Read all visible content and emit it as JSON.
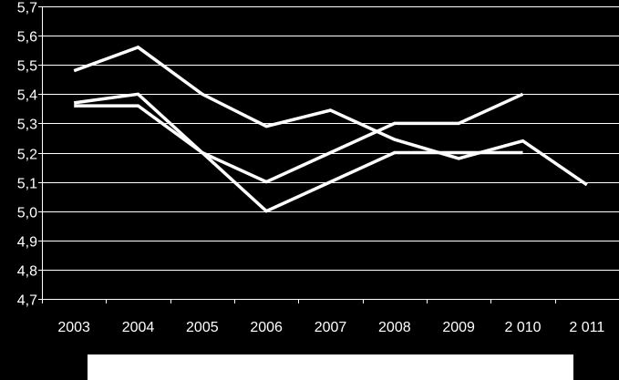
{
  "chart_data": {
    "type": "line",
    "title": "",
    "xlabel": "",
    "ylabel": "",
    "categories": [
      "2003",
      "2004",
      "2005",
      "2006",
      "2007",
      "2008",
      "2009",
      "2 010",
      "2 011"
    ],
    "ylim": [
      4.7,
      5.7
    ],
    "yticks": [
      "4,7",
      "4,8",
      "4,9",
      "5,0",
      "5,1",
      "5,2",
      "5,3",
      "5,4",
      "5,5",
      "5,6",
      "5,7"
    ],
    "grid": true,
    "series": [
      {
        "values": [
          5.48,
          5.56,
          5.4,
          5.29,
          5.345,
          5.245,
          5.18,
          5.24,
          5.09
        ]
      },
      {
        "values": [
          5.37,
          5.4,
          5.2,
          5.1,
          5.2,
          5.3,
          5.3,
          5.4,
          null
        ]
      },
      {
        "values": [
          5.36,
          5.36,
          5.2,
          5.0,
          5.1,
          5.2,
          5.2,
          5.2,
          null
        ]
      }
    ],
    "colors": {
      "background": "#000000",
      "line": "#ffffff",
      "grid": "#ffffff"
    }
  }
}
